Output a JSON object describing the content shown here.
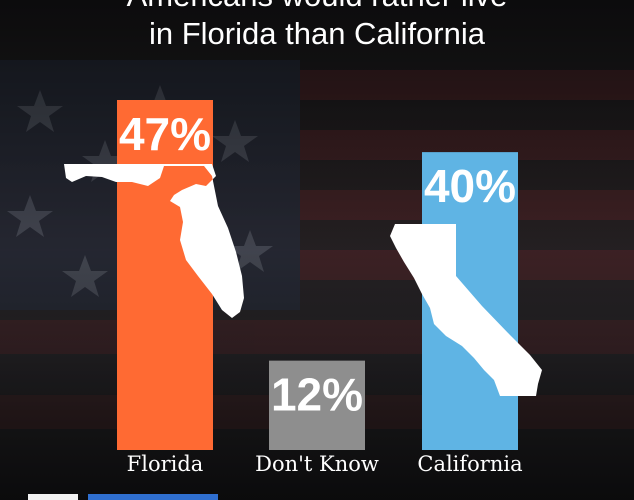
{
  "title": {
    "line1": "Americans would rather live",
    "line2": "in Florida than California"
  },
  "colors": {
    "florida": "#ff6a33",
    "dont_know": "#8e8e8e",
    "california": "#5fb4e4",
    "state_silhouette": "#ffffff",
    "text": "#ffffff"
  },
  "chart_data": {
    "type": "bar",
    "categories": [
      "Florida",
      "Don't Know",
      "California"
    ],
    "values": [
      47,
      12,
      40
    ],
    "value_labels": [
      "47%",
      "12%",
      "40%"
    ],
    "unit": "%",
    "title": "Americans would rather live in Florida than California",
    "xlabel": "",
    "ylabel": "",
    "ylim": [
      0,
      50
    ],
    "grid": false,
    "legend": "none"
  }
}
